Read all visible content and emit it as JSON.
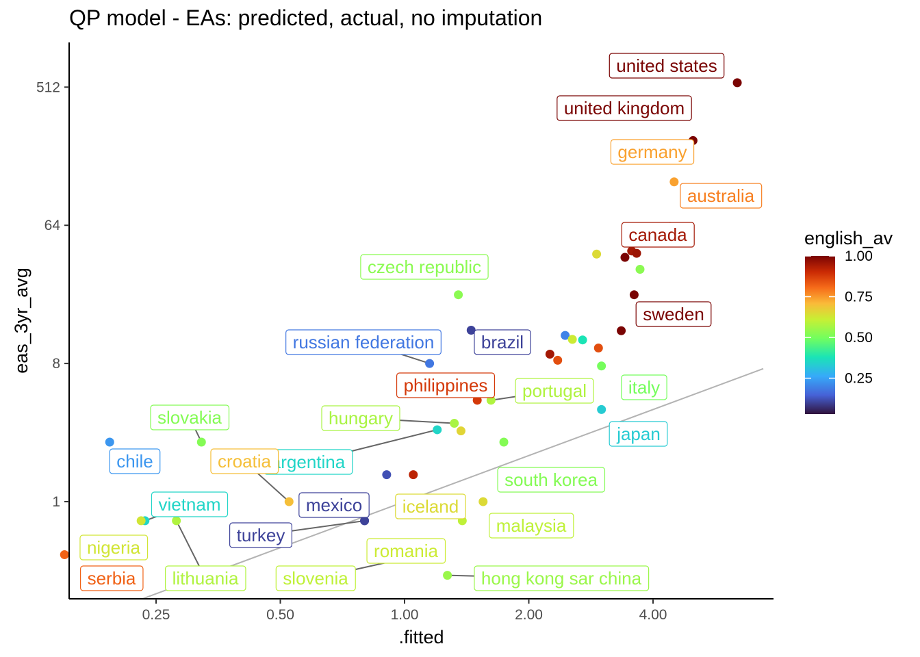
{
  "chart_data": {
    "type": "scatter",
    "title": "QP model - EAs: predicted, actual, no imputation",
    "xlabel": ".fitted",
    "ylabel": "eas_3yr_avg",
    "x_scale": "log2",
    "y_scale": "log2",
    "xlim": [
      0.15,
      7.4
    ],
    "ylim": [
      0.33,
      720
    ],
    "x_ticks": [
      {
        "value": 0.25,
        "label": "0.25"
      },
      {
        "value": 0.5,
        "label": "0.50"
      },
      {
        "value": 1,
        "label": "1.00"
      },
      {
        "value": 2,
        "label": "2.00"
      },
      {
        "value": 4,
        "label": "4.00"
      }
    ],
    "y_ticks": [
      {
        "value": 1,
        "label": "1"
      },
      {
        "value": 8,
        "label": "8"
      },
      {
        "value": 64,
        "label": "64"
      },
      {
        "value": 512,
        "label": "512"
      }
    ],
    "reference_line": {
      "description": "y = x",
      "color": "#b3b3b3"
    },
    "legend": {
      "title": "english_av",
      "position": "right",
      "range": [
        0.03,
        1.0
      ],
      "ticks": [
        {
          "value": 1.0,
          "label": "1.00"
        },
        {
          "value": 0.75,
          "label": "0.75"
        },
        {
          "value": 0.5,
          "label": "0.50"
        },
        {
          "value": 0.25,
          "label": "0.25"
        }
      ],
      "colormap": "turbo"
    },
    "grid": false,
    "points": [
      {
        "label": "united states",
        "x": 6.4,
        "y": 547,
        "color": 1.0
      },
      {
        "label": "united kingdom",
        "x": 5.0,
        "y": 229,
        "color": 1.0
      },
      {
        "label": "germany",
        "x": 4.5,
        "y": 123,
        "color": 0.74
      },
      {
        "label": "australia",
        "x": 4.4,
        "y": 63,
        "color": 0.78
      },
      {
        "label": "canada",
        "x": 3.55,
        "y": 43.5,
        "color": 0.95
      },
      {
        "label": "",
        "x": 3.42,
        "y": 39.5,
        "color": 1.0
      },
      {
        "label": "",
        "x": 3.65,
        "y": 42,
        "color": 0.96
      },
      {
        "label": "",
        "x": 2.92,
        "y": 41.5,
        "color": 0.65
      },
      {
        "label": "",
        "x": 3.72,
        "y": 33,
        "color": 0.53
      },
      {
        "label": "czech republic",
        "x": 1.35,
        "y": 22.5,
        "color": 0.53
      },
      {
        "label": "",
        "x": 3.6,
        "y": 22.5,
        "color": 1.0
      },
      {
        "label": "sweden",
        "x": 3.35,
        "y": 13.1,
        "color": 1.0
      },
      {
        "label": "brazil",
        "x": 1.45,
        "y": 13.2,
        "color": 0.1
      },
      {
        "label": "",
        "x": 2.45,
        "y": 12.2,
        "color": 0.2
      },
      {
        "label": "",
        "x": 2.55,
        "y": 11.5,
        "color": 0.62
      },
      {
        "label": "",
        "x": 2.7,
        "y": 11.4,
        "color": 0.38
      },
      {
        "label": "",
        "x": 2.95,
        "y": 10.1,
        "color": 0.85
      },
      {
        "label": "",
        "x": 2.25,
        "y": 9.2,
        "color": 0.95
      },
      {
        "label": "",
        "x": 2.35,
        "y": 8.4,
        "color": 0.85
      },
      {
        "label": "russian federation",
        "x": 1.15,
        "y": 8.0,
        "color": 0.18
      },
      {
        "label": "italy",
        "x": 3.0,
        "y": 7.7,
        "color": 0.5
      },
      {
        "label": "philippines",
        "x": 1.5,
        "y": 4.6,
        "color": 0.88
      },
      {
        "label": "portugal",
        "x": 1.62,
        "y": 4.6,
        "color": 0.58
      },
      {
        "label": "japan",
        "x": 3.0,
        "y": 4.0,
        "color": 0.33
      },
      {
        "label": "hungary",
        "x": 1.32,
        "y": 3.25,
        "color": 0.57
      },
      {
        "label": "argentina",
        "x": 1.2,
        "y": 2.95,
        "color": 0.35
      },
      {
        "label": "",
        "x": 1.37,
        "y": 2.9,
        "color": 0.66
      },
      {
        "label": "chile",
        "x": 0.193,
        "y": 2.45,
        "color": 0.23
      },
      {
        "label": "slovakia",
        "x": 0.322,
        "y": 2.45,
        "color": 0.52
      },
      {
        "label": "south korea",
        "x": 1.74,
        "y": 2.45,
        "color": 0.52
      },
      {
        "label": "",
        "x": 0.905,
        "y": 1.5,
        "color": 0.12
      },
      {
        "label": "",
        "x": 1.05,
        "y": 1.5,
        "color": 0.92
      },
      {
        "label": "croatia",
        "x": 0.525,
        "y": 1.0,
        "color": 0.7
      },
      {
        "label": "iceland",
        "x": 1.55,
        "y": 1.0,
        "color": 0.65
      },
      {
        "label": "mexico",
        "x": 0.8,
        "y": 0.75,
        "color": 0.1
      },
      {
        "label": "malaysia",
        "x": 1.38,
        "y": 0.75,
        "color": 0.6
      },
      {
        "label": "vietnam",
        "x": 0.235,
        "y": 0.75,
        "color": 0.35
      },
      {
        "label": "nigeria",
        "x": 0.23,
        "y": 0.75,
        "color": 0.63
      },
      {
        "label": "lithuania",
        "x": 0.28,
        "y": 0.75,
        "color": 0.58
      },
      {
        "label": "turkey",
        "x": 0.8,
        "y": 0.75,
        "color": 0.1
      },
      {
        "label": "romania",
        "x": 1.1,
        "y": 0.45,
        "color": 0.62
      },
      {
        "label": "serbia",
        "x": 0.15,
        "y": 0.45,
        "color": 0.82
      },
      {
        "label": "slovenia",
        "x": 1.1,
        "y": 0.45,
        "color": 0.6
      },
      {
        "label": "hong kong sar china",
        "x": 1.27,
        "y": 0.33,
        "color": 0.55
      }
    ]
  }
}
